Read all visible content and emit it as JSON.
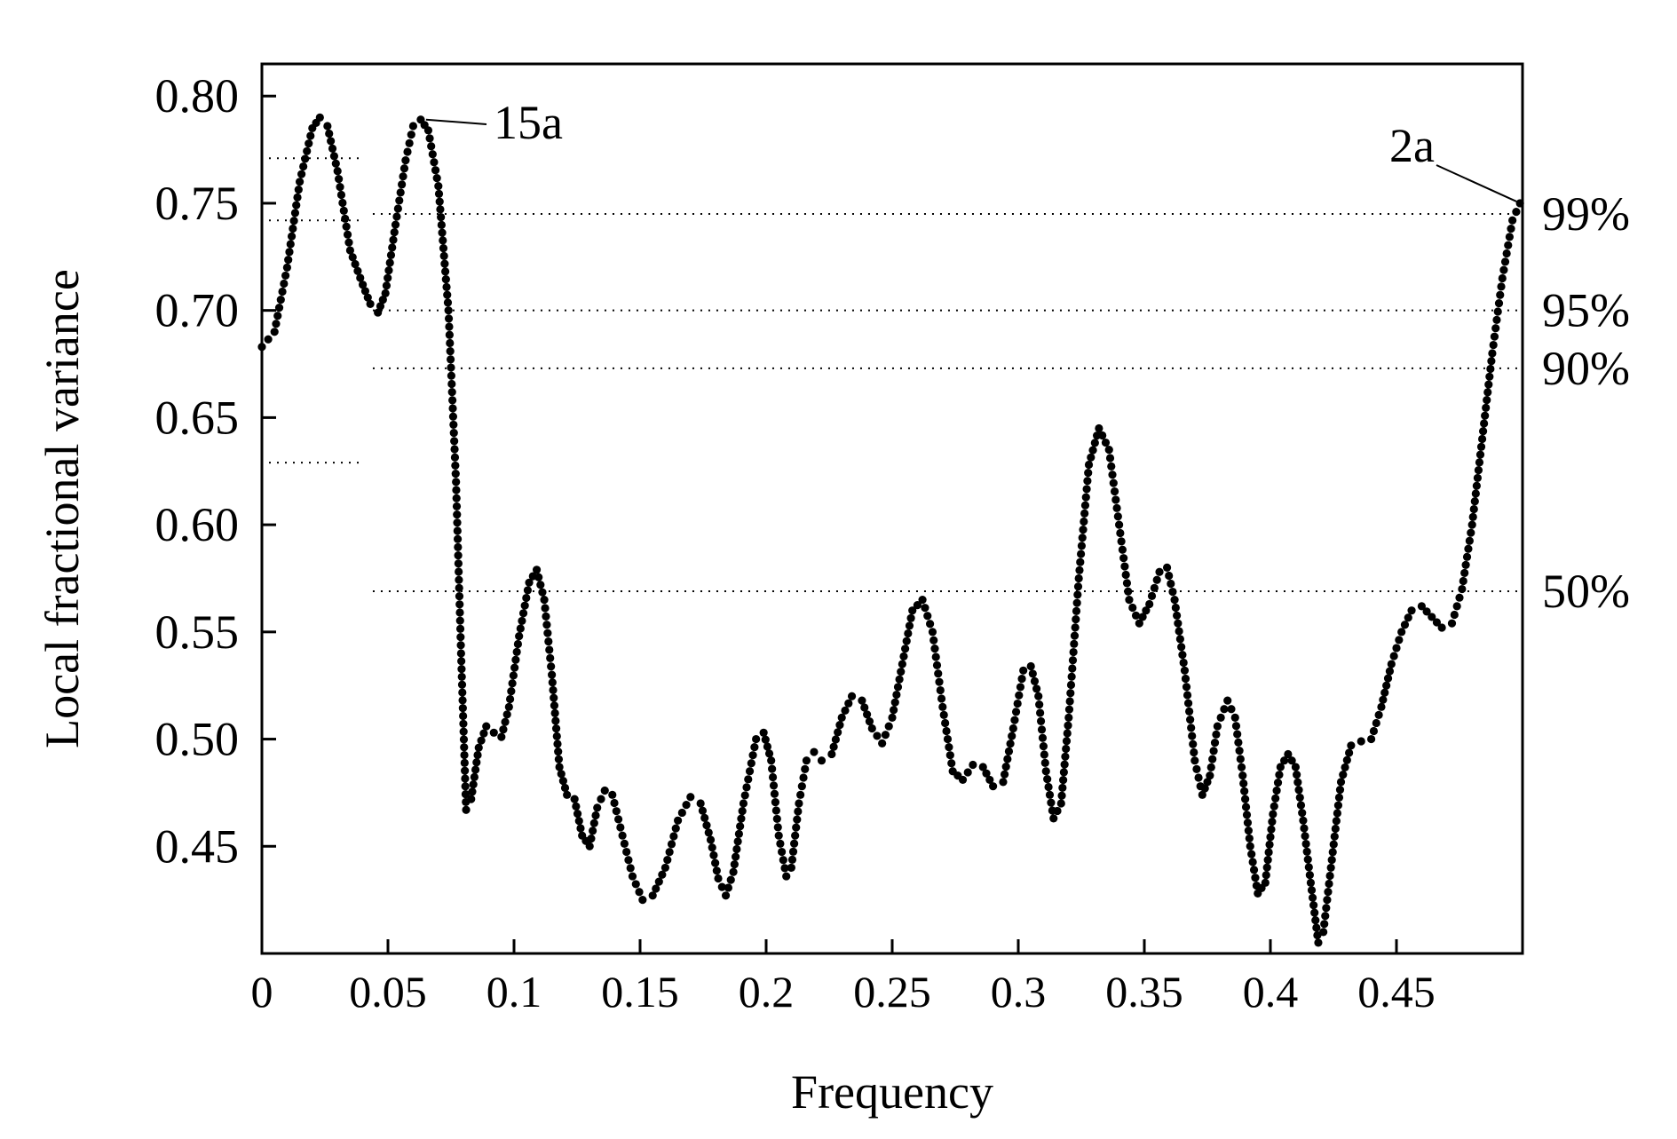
{
  "chart_data": {
    "type": "scatter",
    "title": "",
    "xlabel": "Frequency",
    "ylabel": "Local fractional variance",
    "xlim": [
      0,
      0.5
    ],
    "ylim": [
      0.4,
      0.815
    ],
    "x_ticks": [
      "0",
      "0.05",
      "0.1",
      "0.15",
      "0.2",
      "0.25",
      "0.3",
      "0.35",
      "0.4",
      "0.45"
    ],
    "y_ticks": [
      "0.80",
      "0.75",
      "0.70",
      "0.65",
      "0.60",
      "0.55",
      "0.50",
      "0.45"
    ],
    "grid": false,
    "series": [
      {
        "marker": "dot",
        "color": "#000000",
        "points": [
          [
            0.0,
            0.683
          ],
          [
            0.005,
            0.69
          ],
          [
            0.01,
            0.72
          ],
          [
            0.015,
            0.76
          ],
          [
            0.02,
            0.785
          ],
          [
            0.023,
            0.79
          ],
          [
            0.026,
            0.786
          ],
          [
            0.03,
            0.765
          ],
          [
            0.035,
            0.728
          ],
          [
            0.04,
            0.712
          ],
          [
            0.043,
            0.703
          ],
          [
            0.046,
            0.699
          ],
          [
            0.049,
            0.708
          ],
          [
            0.053,
            0.74
          ],
          [
            0.057,
            0.77
          ],
          [
            0.06,
            0.786
          ],
          [
            0.063,
            0.789
          ],
          [
            0.066,
            0.784
          ],
          [
            0.07,
            0.758
          ],
          [
            0.074,
            0.7
          ],
          [
            0.077,
            0.62
          ],
          [
            0.079,
            0.54
          ],
          [
            0.081,
            0.467
          ],
          [
            0.083,
            0.472
          ],
          [
            0.086,
            0.496
          ],
          [
            0.089,
            0.506
          ],
          [
            0.092,
            0.503
          ],
          [
            0.095,
            0.501
          ],
          [
            0.098,
            0.515
          ],
          [
            0.102,
            0.548
          ],
          [
            0.106,
            0.573
          ],
          [
            0.109,
            0.579
          ],
          [
            0.112,
            0.565
          ],
          [
            0.115,
            0.53
          ],
          [
            0.118,
            0.487
          ],
          [
            0.121,
            0.474
          ],
          [
            0.124,
            0.472
          ],
          [
            0.127,
            0.455
          ],
          [
            0.13,
            0.45
          ],
          [
            0.133,
            0.468
          ],
          [
            0.136,
            0.476
          ],
          [
            0.139,
            0.474
          ],
          [
            0.143,
            0.455
          ],
          [
            0.147,
            0.436
          ],
          [
            0.151,
            0.425
          ],
          [
            0.155,
            0.427
          ],
          [
            0.16,
            0.44
          ],
          [
            0.165,
            0.462
          ],
          [
            0.17,
            0.473
          ],
          [
            0.174,
            0.47
          ],
          [
            0.178,
            0.453
          ],
          [
            0.181,
            0.435
          ],
          [
            0.184,
            0.427
          ],
          [
            0.187,
            0.438
          ],
          [
            0.191,
            0.47
          ],
          [
            0.196,
            0.5
          ],
          [
            0.199,
            0.503
          ],
          [
            0.202,
            0.49
          ],
          [
            0.205,
            0.455
          ],
          [
            0.208,
            0.436
          ],
          [
            0.21,
            0.44
          ],
          [
            0.213,
            0.47
          ],
          [
            0.216,
            0.49
          ],
          [
            0.219,
            0.494
          ],
          [
            0.222,
            0.49
          ],
          [
            0.226,
            0.493
          ],
          [
            0.23,
            0.51
          ],
          [
            0.234,
            0.52
          ],
          [
            0.238,
            0.518
          ],
          [
            0.242,
            0.505
          ],
          [
            0.246,
            0.498
          ],
          [
            0.25,
            0.51
          ],
          [
            0.254,
            0.535
          ],
          [
            0.258,
            0.56
          ],
          [
            0.262,
            0.565
          ],
          [
            0.266,
            0.55
          ],
          [
            0.27,
            0.515
          ],
          [
            0.274,
            0.485
          ],
          [
            0.278,
            0.481
          ],
          [
            0.282,
            0.488
          ],
          [
            0.286,
            0.487
          ],
          [
            0.29,
            0.478
          ],
          [
            0.294,
            0.48
          ],
          [
            0.298,
            0.505
          ],
          [
            0.302,
            0.532
          ],
          [
            0.305,
            0.534
          ],
          [
            0.308,
            0.52
          ],
          [
            0.311,
            0.485
          ],
          [
            0.314,
            0.463
          ],
          [
            0.317,
            0.47
          ],
          [
            0.32,
            0.51
          ],
          [
            0.324,
            0.575
          ],
          [
            0.328,
            0.628
          ],
          [
            0.332,
            0.645
          ],
          [
            0.336,
            0.635
          ],
          [
            0.34,
            0.6
          ],
          [
            0.344,
            0.565
          ],
          [
            0.348,
            0.554
          ],
          [
            0.352,
            0.563
          ],
          [
            0.356,
            0.578
          ],
          [
            0.359,
            0.58
          ],
          [
            0.362,
            0.565
          ],
          [
            0.366,
            0.532
          ],
          [
            0.37,
            0.49
          ],
          [
            0.373,
            0.474
          ],
          [
            0.376,
            0.483
          ],
          [
            0.379,
            0.506
          ],
          [
            0.383,
            0.518
          ],
          [
            0.386,
            0.51
          ],
          [
            0.389,
            0.483
          ],
          [
            0.392,
            0.45
          ],
          [
            0.395,
            0.428
          ],
          [
            0.398,
            0.433
          ],
          [
            0.401,
            0.465
          ],
          [
            0.404,
            0.487
          ],
          [
            0.407,
            0.493
          ],
          [
            0.41,
            0.487
          ],
          [
            0.413,
            0.462
          ],
          [
            0.416,
            0.433
          ],
          [
            0.419,
            0.405
          ],
          [
            0.421,
            0.41
          ],
          [
            0.424,
            0.44
          ],
          [
            0.428,
            0.48
          ],
          [
            0.432,
            0.497
          ],
          [
            0.436,
            0.499
          ],
          [
            0.44,
            0.5
          ],
          [
            0.444,
            0.515
          ],
          [
            0.448,
            0.535
          ],
          [
            0.452,
            0.55
          ],
          [
            0.456,
            0.56
          ],
          [
            0.46,
            0.562
          ],
          [
            0.464,
            0.557
          ],
          [
            0.468,
            0.552
          ],
          [
            0.472,
            0.554
          ],
          [
            0.476,
            0.57
          ],
          [
            0.48,
            0.6
          ],
          [
            0.484,
            0.64
          ],
          [
            0.488,
            0.68
          ],
          [
            0.492,
            0.715
          ],
          [
            0.496,
            0.742
          ],
          [
            0.499,
            0.75
          ]
        ]
      }
    ],
    "significance_levels": [
      {
        "label": "99%",
        "value": 0.745
      },
      {
        "label": "95%",
        "value": 0.7
      },
      {
        "label": "90%",
        "value": 0.673
      },
      {
        "label": "50%",
        "value": 0.569
      }
    ],
    "left_short_levels": [
      0.771,
      0.742,
      0.629
    ],
    "annotations": [
      {
        "text": "15a",
        "point": [
          0.063,
          0.789
        ]
      },
      {
        "text": "2a",
        "point": [
          0.499,
          0.75
        ]
      }
    ]
  }
}
